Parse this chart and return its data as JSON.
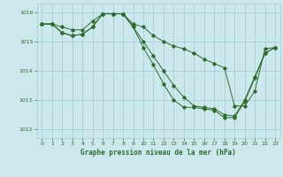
{
  "title": "Graphe pression niveau de la mer (hPa)",
  "background_color": "#cce8ed",
  "grid_color": "#9ecdd6",
  "line_color": "#2d6b2d",
  "xlim": [
    -0.5,
    23.5
  ],
  "ylim": [
    1011.7,
    1016.3
  ],
  "yticks": [
    1012,
    1013,
    1014,
    1015,
    1016
  ],
  "xticks": [
    0,
    1,
    2,
    3,
    4,
    5,
    6,
    7,
    8,
    9,
    10,
    11,
    12,
    13,
    14,
    15,
    16,
    17,
    18,
    19,
    20,
    21,
    22,
    23
  ],
  "series1": {
    "x": [
      0,
      1,
      2,
      3,
      4,
      5,
      6,
      7,
      8,
      9,
      10,
      11,
      12,
      13,
      14,
      15,
      16,
      17,
      18,
      19,
      20,
      21,
      22,
      23
    ],
    "y": [
      1015.6,
      1015.6,
      1015.5,
      1015.4,
      1015.4,
      1015.7,
      1015.95,
      1015.95,
      1015.95,
      1015.5,
      1015.0,
      1014.5,
      1014.0,
      1013.5,
      1013.1,
      1012.8,
      1012.75,
      1012.7,
      1012.5,
      1012.45,
      1013.0,
      1013.8,
      1014.6,
      1014.8
    ]
  },
  "series2": {
    "x": [
      0,
      1,
      2,
      3,
      4,
      5,
      6,
      7,
      8,
      9,
      10,
      11,
      12,
      13,
      14,
      15,
      16,
      17,
      18,
      19,
      20,
      21,
      22,
      23
    ],
    "y": [
      1015.6,
      1015.6,
      1015.3,
      1015.2,
      1015.25,
      1015.5,
      1015.95,
      1015.95,
      1015.95,
      1015.6,
      1015.5,
      1015.2,
      1015.0,
      1014.85,
      1014.75,
      1014.6,
      1014.4,
      1014.25,
      1014.1,
      1012.8,
      1012.8,
      1013.3,
      1014.75,
      1014.8
    ]
  },
  "series3": {
    "x": [
      0,
      1,
      2,
      3,
      4,
      5,
      6,
      7,
      8,
      9,
      10,
      11,
      12,
      13,
      14,
      15,
      16,
      17,
      18,
      19,
      20,
      21,
      22,
      23
    ],
    "y": [
      1015.6,
      1015.6,
      1015.3,
      1015.2,
      1015.25,
      1015.5,
      1015.95,
      1015.95,
      1015.95,
      1015.5,
      1014.8,
      1014.2,
      1013.55,
      1013.0,
      1012.75,
      1012.75,
      1012.7,
      1012.65,
      1012.4,
      1012.4,
      1012.95,
      1013.75,
      1014.6,
      1014.8
    ]
  }
}
